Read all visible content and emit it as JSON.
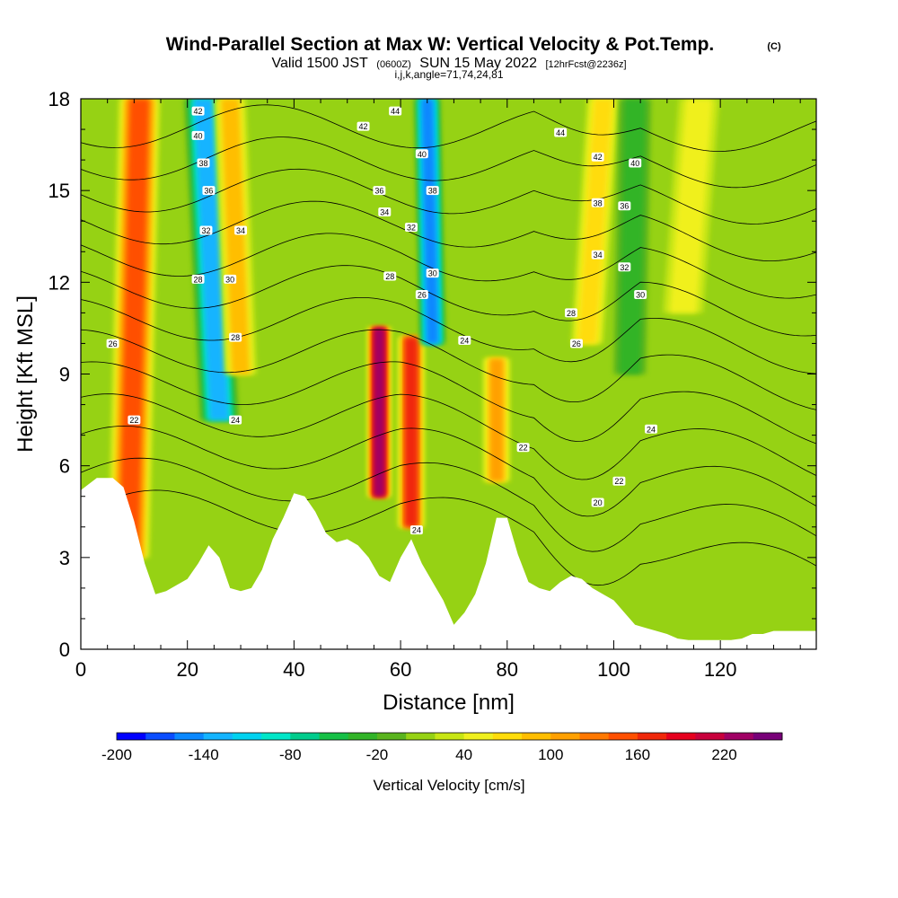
{
  "title": {
    "main": "Wind-Parallel Section at Max W: Vertical Velocity & Pot.Temp.",
    "copyright": "(C)",
    "valid_a": "Valid 1500 JST",
    "valid_utc": "(0600Z)",
    "valid_b": "SUN 15 May 2022",
    "forecast": "[12hrFcst@2236z]",
    "indices": "i,j,k,angle=71,74,24,81"
  },
  "chart_data": {
    "type": "heatmap",
    "xlabel": "Distance [nm]",
    "ylabel": "Height [Kft MSL]",
    "xlim": [
      0,
      138
    ],
    "ylim": [
      0,
      18
    ],
    "x_ticks": [
      0,
      20,
      40,
      60,
      80,
      100,
      120
    ],
    "y_ticks": [
      0,
      3,
      6,
      9,
      12,
      15,
      18
    ],
    "x_tick_labels": [
      "0",
      "20",
      "40",
      "60",
      "80",
      "100",
      "120"
    ],
    "y_tick_labels": [
      "0",
      "3",
      "6",
      "9",
      "12",
      "15",
      "18"
    ],
    "colorbar": {
      "title": "Vertical Velocity [cm/s]",
      "levels": [
        -200,
        -180,
        -160,
        -140,
        -120,
        -100,
        -80,
        -60,
        -40,
        -20,
        0,
        20,
        40,
        60,
        80,
        100,
        120,
        140,
        160,
        180,
        200,
        220,
        240
      ],
      "tick_values": [
        -200,
        -140,
        -80,
        -20,
        40,
        100,
        160,
        220
      ],
      "tick_labels": [
        "-200",
        "-140",
        "-80",
        "-20",
        "40",
        "100",
        "160",
        "220"
      ],
      "colors": [
        "#0000ff",
        "#0a4dff",
        "#0a88ff",
        "#14b4ff",
        "#00d2f0",
        "#00e6c8",
        "#00cc8c",
        "#16c046",
        "#32b428",
        "#5ab41e",
        "#96d214",
        "#c8e614",
        "#f0f01e",
        "#ffdc0a",
        "#ffbe00",
        "#ffa000",
        "#ff7800",
        "#ff5000",
        "#f0280a",
        "#e6001e",
        "#c8003c",
        "#a00064",
        "#780078"
      ]
    },
    "terrain_profile": {
      "x": [
        0,
        3,
        6,
        8,
        10,
        12,
        14,
        16,
        18,
        20,
        22,
        24,
        26,
        28,
        30,
        32,
        34,
        36,
        38,
        40,
        42,
        44,
        46,
        48,
        50,
        52,
        54,
        56,
        58,
        60,
        62,
        64,
        66,
        68,
        70,
        72,
        74,
        76,
        78,
        80,
        82,
        84,
        86,
        88,
        90,
        92,
        94,
        96,
        98,
        100,
        102,
        104,
        106,
        108,
        110,
        112,
        114,
        116,
        118,
        120,
        122,
        124,
        126,
        128,
        130,
        132,
        134,
        136,
        138
      ],
      "height_kft": [
        5.2,
        5.6,
        5.6,
        5.3,
        4.2,
        2.8,
        1.8,
        1.9,
        2.1,
        2.3,
        2.8,
        3.4,
        3.0,
        2.0,
        1.9,
        2.0,
        2.6,
        3.6,
        4.3,
        5.1,
        5.0,
        4.5,
        3.8,
        3.5,
        3.6,
        3.4,
        3.0,
        2.4,
        2.2,
        3.0,
        3.6,
        2.8,
        2.2,
        1.6,
        0.8,
        1.2,
        1.8,
        2.8,
        4.3,
        4.3,
        3.1,
        2.2,
        2.0,
        1.9,
        2.2,
        2.4,
        2.3,
        2.0,
        1.8,
        1.6,
        1.2,
        0.8,
        0.7,
        0.6,
        0.5,
        0.35,
        0.3,
        0.3,
        0.3,
        0.3,
        0.3,
        0.35,
        0.5,
        0.5,
        0.6,
        0.6,
        0.6,
        0.6,
        0.6
      ]
    },
    "velocity_features": [
      {
        "x_bottom": 9,
        "x_top": 11,
        "h_bottom": 3,
        "h_top": 18,
        "w_cm_s": 150,
        "width_nm": 2.6
      },
      {
        "x_bottom": 26,
        "x_top": 23,
        "h_bottom": 7.5,
        "h_top": 18,
        "w_cm_s": -130,
        "width_nm": 2.4
      },
      {
        "x_bottom": 30,
        "x_top": 28,
        "h_bottom": 9,
        "h_top": 18,
        "w_cm_s": 80,
        "width_nm": 2
      },
      {
        "x_bottom": 56,
        "x_top": 56,
        "h_bottom": 5,
        "h_top": 10.5,
        "w_cm_s": 220,
        "width_nm": 1.5
      },
      {
        "x_bottom": 62,
        "x_top": 62,
        "h_bottom": 4,
        "h_top": 10.2,
        "w_cm_s": 160,
        "width_nm": 1.7
      },
      {
        "x_bottom": 66,
        "x_top": 65,
        "h_bottom": 10,
        "h_top": 18,
        "w_cm_s": -150,
        "width_nm": 1.6
      },
      {
        "x_bottom": 78,
        "x_top": 78,
        "h_bottom": 5.5,
        "h_top": 9.5,
        "w_cm_s": 100,
        "width_nm": 1.7
      },
      {
        "x_bottom": 95,
        "x_top": 98,
        "h_bottom": 10,
        "h_top": 18,
        "w_cm_s": 60,
        "width_nm": 2
      },
      {
        "x_bottom": 103,
        "x_top": 104,
        "h_bottom": 9,
        "h_top": 18,
        "w_cm_s": -40,
        "width_nm": 2
      },
      {
        "x_bottom": 113,
        "x_top": 116,
        "h_bottom": 11,
        "h_top": 18,
        "w_cm_s": 40,
        "width_nm": 2.5
      }
    ],
    "theta_contours": {
      "levels": [
        20,
        22,
        24,
        26,
        28,
        30,
        32,
        34,
        36,
        38,
        40,
        42,
        44
      ],
      "labels": [
        {
          "text": "42",
          "x": 22,
          "h": 17.6
        },
        {
          "text": "40",
          "x": 22,
          "h": 16.8
        },
        {
          "text": "38",
          "x": 23,
          "h": 15.9
        },
        {
          "text": "36",
          "x": 24,
          "h": 15.0
        },
        {
          "text": "32",
          "x": 23.5,
          "h": 13.7
        },
        {
          "text": "34",
          "x": 30,
          "h": 13.7
        },
        {
          "text": "28",
          "x": 22,
          "h": 12.1
        },
        {
          "text": "30",
          "x": 28,
          "h": 12.1
        },
        {
          "text": "26",
          "x": 6,
          "h": 10.0
        },
        {
          "text": "28",
          "x": 29,
          "h": 10.2
        },
        {
          "text": "22",
          "x": 10,
          "h": 7.5
        },
        {
          "text": "24",
          "x": 29,
          "h": 7.5
        },
        {
          "text": "42",
          "x": 53,
          "h": 17.1
        },
        {
          "text": "44",
          "x": 59,
          "h": 17.6
        },
        {
          "text": "36",
          "x": 56,
          "h": 15.0
        },
        {
          "text": "34",
          "x": 57,
          "h": 14.3
        },
        {
          "text": "32",
          "x": 62,
          "h": 13.8
        },
        {
          "text": "28",
          "x": 58,
          "h": 12.2
        },
        {
          "text": "26",
          "x": 64,
          "h": 11.6
        },
        {
          "text": "40",
          "x": 64,
          "h": 16.2
        },
        {
          "text": "38",
          "x": 66,
          "h": 15.0
        },
        {
          "text": "30",
          "x": 66,
          "h": 12.3
        },
        {
          "text": "24",
          "x": 72,
          "h": 10.1
        },
        {
          "text": "22",
          "x": 83,
          "h": 6.6
        },
        {
          "text": "24",
          "x": 63,
          "h": 3.9
        },
        {
          "text": "44",
          "x": 90,
          "h": 16.9
        },
        {
          "text": "42",
          "x": 97,
          "h": 16.1
        },
        {
          "text": "40",
          "x": 104,
          "h": 15.9
        },
        {
          "text": "38",
          "x": 97,
          "h": 14.6
        },
        {
          "text": "36",
          "x": 102,
          "h": 14.5
        },
        {
          "text": "34",
          "x": 97,
          "h": 12.9
        },
        {
          "text": "32",
          "x": 102,
          "h": 12.5
        },
        {
          "text": "30",
          "x": 105,
          "h": 11.6
        },
        {
          "text": "28",
          "x": 92,
          "h": 11.0
        },
        {
          "text": "26",
          "x": 93,
          "h": 10.0
        },
        {
          "text": "24",
          "x": 107,
          "h": 7.2
        },
        {
          "text": "22",
          "x": 101,
          "h": 5.5
        },
        {
          "text": "20",
          "x": 97,
          "h": 4.8
        }
      ]
    }
  }
}
